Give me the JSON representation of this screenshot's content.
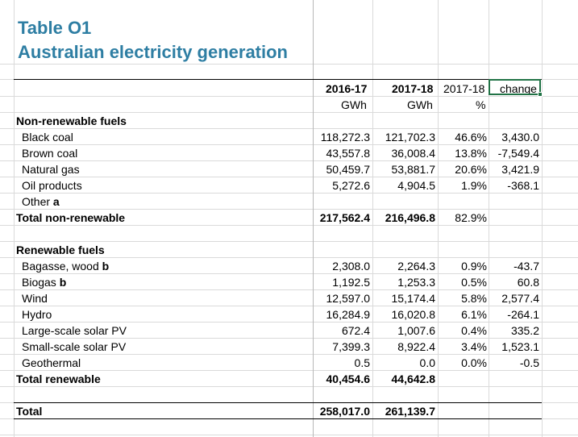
{
  "title": {
    "line1": "Table O1",
    "line2": "Australian electricity generation"
  },
  "headers": {
    "col1": {
      "year": "2016-17",
      "unit": "GWh"
    },
    "col2": {
      "year": "2017-18",
      "unit": "GWh"
    },
    "col3": {
      "year": "2017-18",
      "unit": "%"
    },
    "col4": {
      "year": "change",
      "unit": ""
    }
  },
  "sections": {
    "nonrenewable": {
      "heading": "Non-renewable fuels",
      "rows": [
        {
          "label": "Black coal",
          "footnote": "",
          "v1": "118,272.3",
          "v2": "121,702.3",
          "pct": "46.6%",
          "change": "3,430.0"
        },
        {
          "label": "Brown coal",
          "footnote": "",
          "v1": "43,557.8",
          "v2": "36,008.4",
          "pct": "13.8%",
          "change": "-7,549.4"
        },
        {
          "label": "Natural gas",
          "footnote": "",
          "v1": "50,459.7",
          "v2": "53,881.7",
          "pct": "20.6%",
          "change": "3,421.9"
        },
        {
          "label": "Oil products",
          "footnote": "",
          "v1": "5,272.6",
          "v2": "4,904.5",
          "pct": "1.9%",
          "change": "-368.1"
        },
        {
          "label": "Other",
          "footnote": "a",
          "v1": "",
          "v2": "",
          "pct": "",
          "change": ""
        }
      ],
      "total": {
        "label": "Total non-renewable",
        "v1": "217,562.4",
        "v2": "216,496.8",
        "pct": "82.9%",
        "change": ""
      }
    },
    "renewable": {
      "heading": "Renewable fuels",
      "rows": [
        {
          "label": "Bagasse, wood",
          "footnote": "b",
          "v1": "2,308.0",
          "v2": "2,264.3",
          "pct": "0.9%",
          "change": "-43.7"
        },
        {
          "label": "Biogas",
          "footnote": "b",
          "v1": "1,192.5",
          "v2": "1,253.3",
          "pct": "0.5%",
          "change": "60.8"
        },
        {
          "label": "Wind",
          "footnote": "",
          "v1": "12,597.0",
          "v2": "15,174.4",
          "pct": "5.8%",
          "change": "2,577.4"
        },
        {
          "label": "Hydro",
          "footnote": "",
          "v1": "16,284.9",
          "v2": "16,020.8",
          "pct": "6.1%",
          "change": "-264.1"
        },
        {
          "label": "Large-scale solar PV",
          "footnote": "",
          "v1": "672.4",
          "v2": "1,007.6",
          "pct": "0.4%",
          "change": "335.2"
        },
        {
          "label": "Small-scale solar PV",
          "footnote": "",
          "v1": "7,399.3",
          "v2": "8,922.4",
          "pct": "3.4%",
          "change": "1,523.1"
        },
        {
          "label": "Geothermal",
          "footnote": "",
          "v1": "0.5",
          "v2": "0.0",
          "pct": "0.0%",
          "change": "-0.5"
        }
      ],
      "total": {
        "label": "Total renewable",
        "v1": "40,454.6",
        "v2": "44,642.8",
        "pct": "",
        "change": ""
      }
    }
  },
  "grand_total": {
    "label": "Total",
    "v1": "258,017.0",
    "v2": "261,139.7",
    "pct": "",
    "change": ""
  },
  "colors": {
    "title": "#2e7ea3",
    "selection": "#217346",
    "gridline": "#dadada"
  }
}
